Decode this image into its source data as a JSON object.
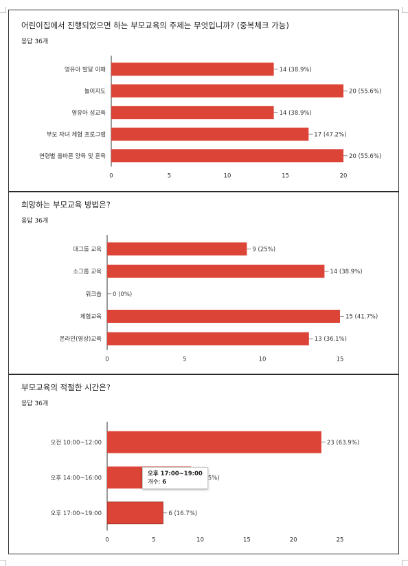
{
  "colors": {
    "bar": "#dc4437",
    "axis": "#333333",
    "grid": "#cccccc"
  },
  "charts": [
    {
      "title": "어린이집에서 진행되었으면 하는 부모교육의 주제는 무엇입니까? (중복체크 가능)",
      "response_count": "응답 36개",
      "chart_data": {
        "type": "bar",
        "orientation": "horizontal",
        "categories": [
          "영유아 발달 이해",
          "놀이지도",
          "영유아 성교육",
          "부모 자녀 체험 프로그램",
          "연령별 올바른 양육 및 훈육"
        ],
        "values": [
          14,
          20,
          14,
          17,
          20
        ],
        "value_labels": [
          "14 (38.9%)",
          "20 (55.6%)",
          "14 (38.9%)",
          "17 (47.2%)",
          "20 (55.6%)"
        ],
        "xlim": [
          0,
          20
        ],
        "xticks": [
          "0",
          "5",
          "10",
          "15",
          "20"
        ]
      }
    },
    {
      "title": "희망하는 부모교육 방법은?",
      "response_count": "응답 36개",
      "chart_data": {
        "type": "bar",
        "orientation": "horizontal",
        "categories": [
          "대그룹 교육",
          "소그룹 교육",
          "워크숍",
          "체험교육",
          "온라인(영상)교육"
        ],
        "values": [
          9,
          14,
          0,
          15,
          13
        ],
        "value_labels": [
          "9 (25%)",
          "14 (38.9%)",
          "0 (0%)",
          "15 (41.7%)",
          "13 (36.1%)"
        ],
        "xlim": [
          0,
          15
        ],
        "xticks": [
          "0",
          "5",
          "10",
          "15"
        ]
      }
    },
    {
      "title": "부모교육의 적절한 시간은?",
      "response_count": "응답 36개",
      "chart_data": {
        "type": "bar",
        "orientation": "horizontal",
        "categories": [
          "오전 10:00~12:00",
          "오후 14:00~16:00",
          "오후 17:00~19:00"
        ],
        "values": [
          23,
          9,
          6
        ],
        "value_labels": [
          "23 (63.9%)",
          "9 (25%)",
          "6 (16.7%)"
        ],
        "xlim": [
          0,
          25
        ],
        "xticks": [
          "0",
          "5",
          "10",
          "15",
          "20",
          "25"
        ]
      },
      "tooltip": {
        "title": "오후 17:00~19:00",
        "label": "개수: ",
        "value": "6"
      }
    }
  ]
}
